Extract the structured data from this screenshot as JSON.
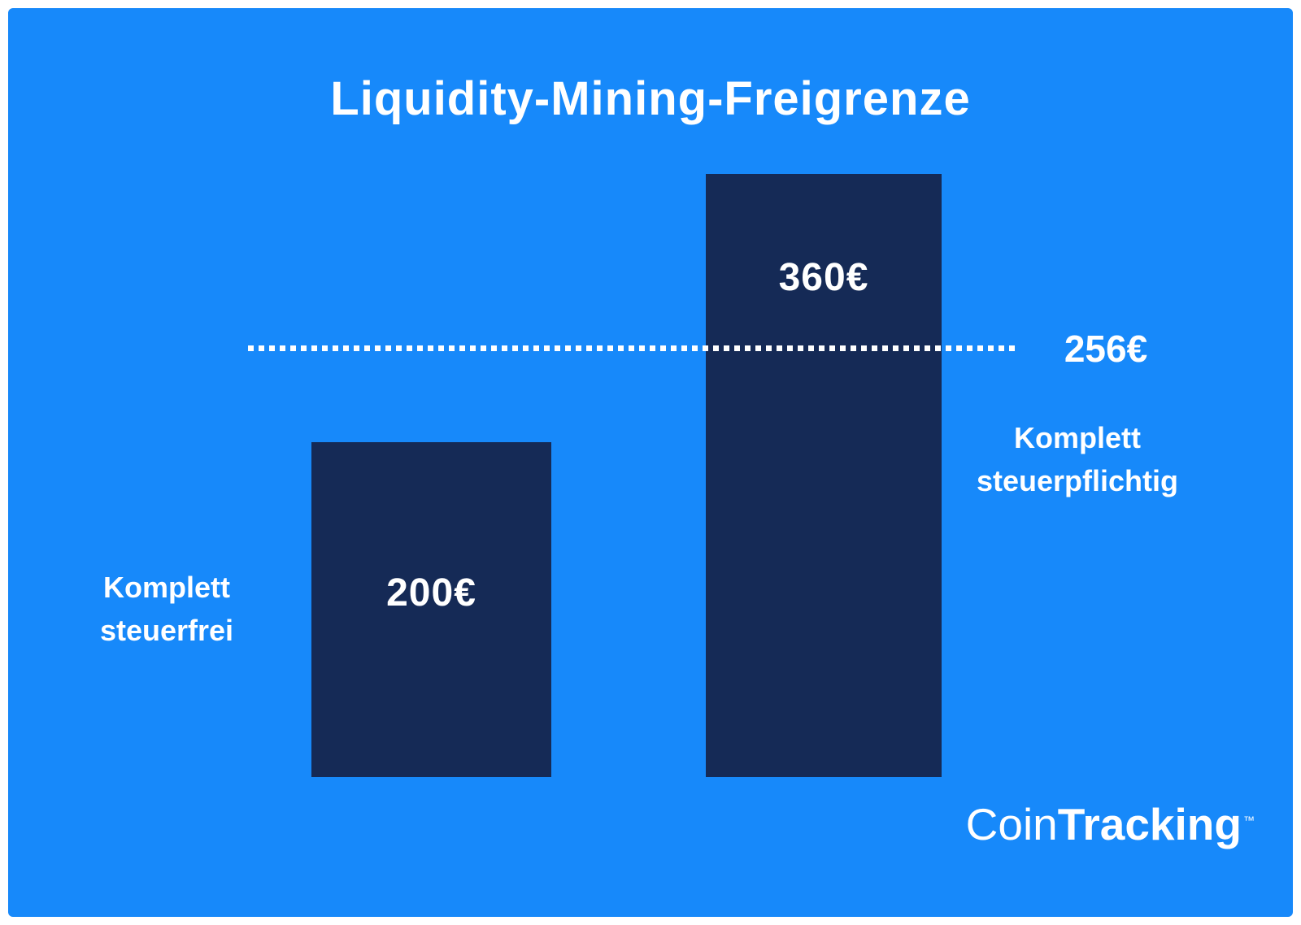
{
  "title": "Liquidity-Mining-Freigrenze",
  "chart_data": {
    "type": "bar",
    "title": "Liquidity-Mining-Freigrenze",
    "categories": [
      "Komplett steuerfrei",
      "Komplett steuerpflichtig"
    ],
    "values": [
      200,
      360
    ],
    "bar_labels": [
      "200€",
      "360€"
    ],
    "threshold": {
      "value": 256,
      "label": "256€"
    },
    "ylim": [
      0,
      380
    ],
    "xlabel": "",
    "ylabel": "",
    "legend": "none",
    "grid": false,
    "colors": {
      "background": "#1789fa",
      "bar": "#152a56",
      "text": "#ffffff",
      "threshold_line": "#ffffff"
    }
  },
  "annotations": {
    "left_bar": {
      "line1": "Komplett",
      "line2": "steuerfrei"
    },
    "right_bar": {
      "line1": "Komplett",
      "line2": "steuerpflichtig"
    }
  },
  "logo": {
    "part1": "Coin",
    "part2": "Tracking",
    "tm": "™"
  }
}
